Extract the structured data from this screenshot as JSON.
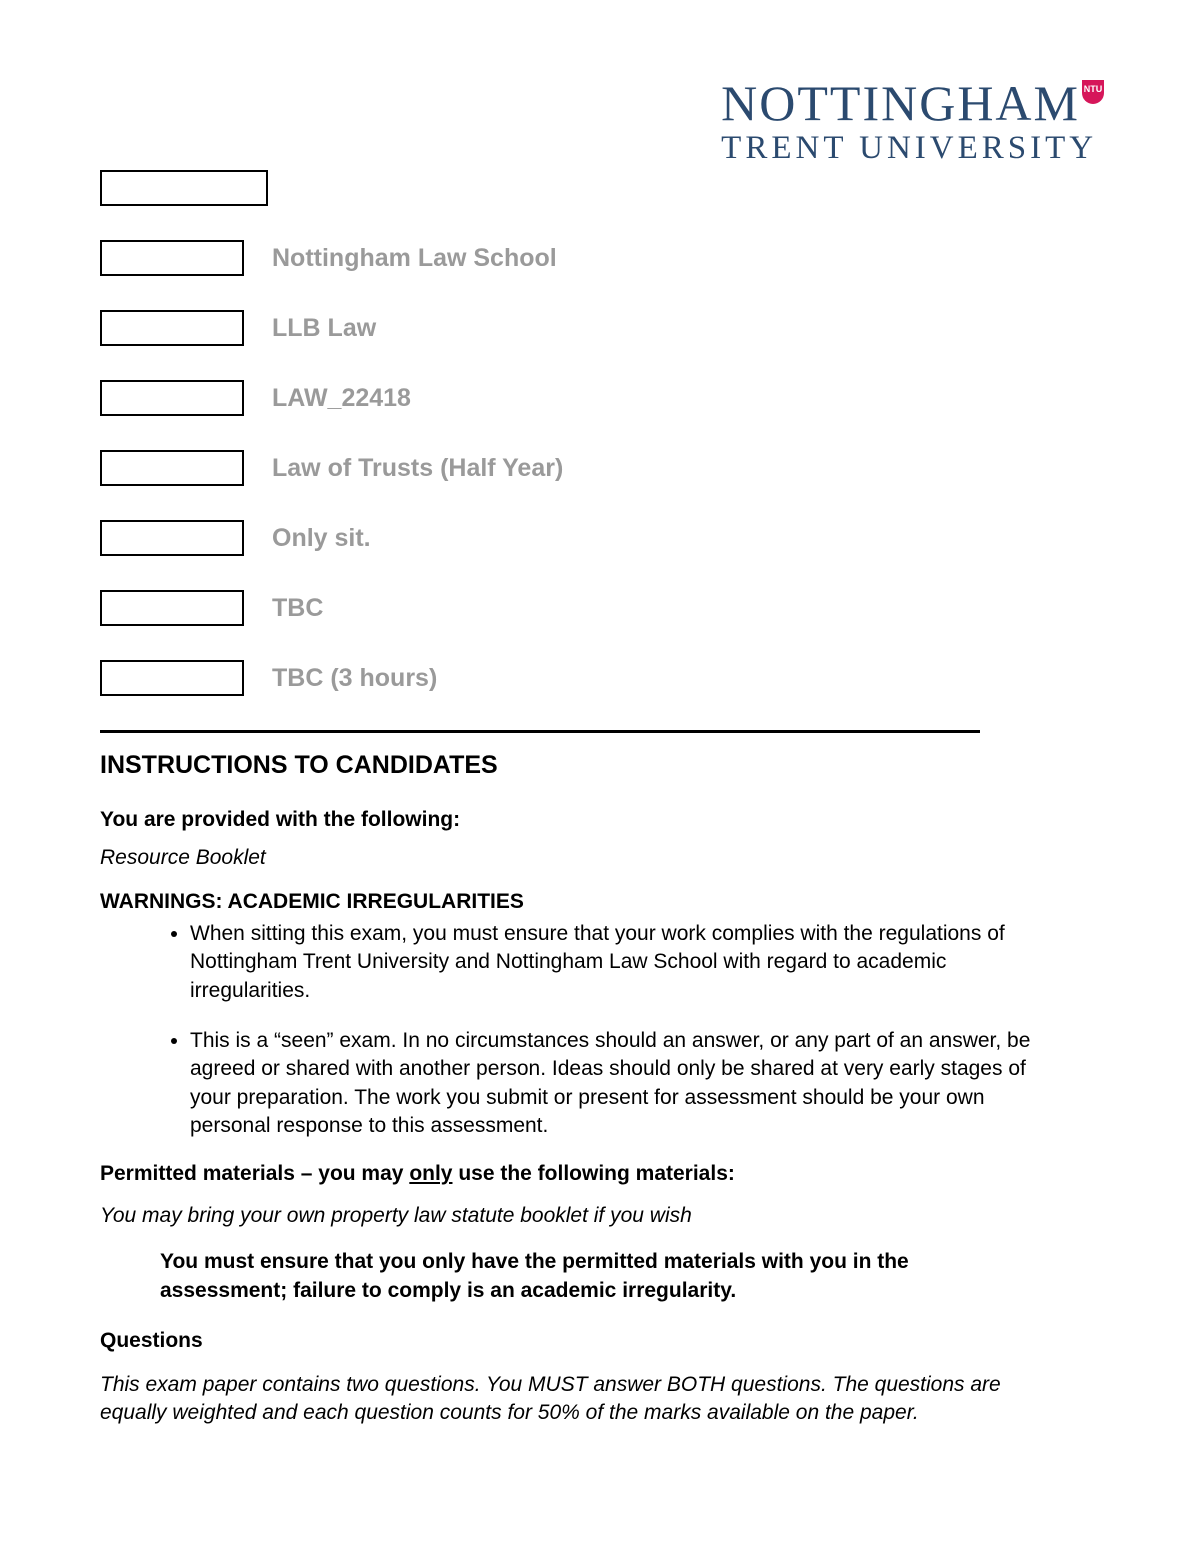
{
  "logo": {
    "line1": "NOTTINGHAM",
    "line2": "TRENT UNIVERSITY",
    "badge_text": "NTU",
    "brand_color": "#2b4a6f",
    "badge_color": "#d6165a"
  },
  "form": {
    "rows": [
      {
        "box_width": "wide",
        "label": ""
      },
      {
        "box_width": "narrow",
        "label": "Nottingham Law School"
      },
      {
        "box_width": "narrow",
        "label": "LLB Law"
      },
      {
        "box_width": "narrow",
        "label": "LAW_22418"
      },
      {
        "box_width": "narrow",
        "label": "Law of Trusts (Half Year)"
      },
      {
        "box_width": "narrow",
        "label": "Only sit."
      },
      {
        "box_width": "narrow",
        "label": "TBC"
      },
      {
        "box_width": "narrow",
        "label": "TBC (3 hours)"
      }
    ],
    "label_color": "#9a9a9a"
  },
  "instructions": {
    "heading": "INSTRUCTIONS TO CANDIDATES",
    "provided_head": "You are provided with the following:",
    "provided_item": "Resource Booklet",
    "warnings_head": "WARNINGS:  ACADEMIC IRREGULARITIES",
    "warnings": [
      "When sitting this exam, you must ensure that your work complies with the regulations of Nottingham Trent University and Nottingham Law School with regard to academic irregularities.",
      "This is a “seen” exam.  In no circumstances should an answer, or any part of an answer, be agreed or shared with another person. Ideas should only be shared at very early stages of your preparation. The work you submit or present for assessment should be your own personal response to this assessment."
    ],
    "permitted_prefix": "Permitted materials – you may ",
    "permitted_only": "only",
    "permitted_suffix": " use the following materials:",
    "permitted_item": "You may bring your own property law statute booklet if you wish",
    "must_text": "You must ensure that you only have the permitted materials with you in the assessment; failure to comply is an academic irregularity.",
    "questions_head": "Questions",
    "questions_body": "This exam paper contains two questions.  You MUST answer BOTH questions. The questions are equally weighted and each question counts for 50% of the marks available on the paper."
  }
}
